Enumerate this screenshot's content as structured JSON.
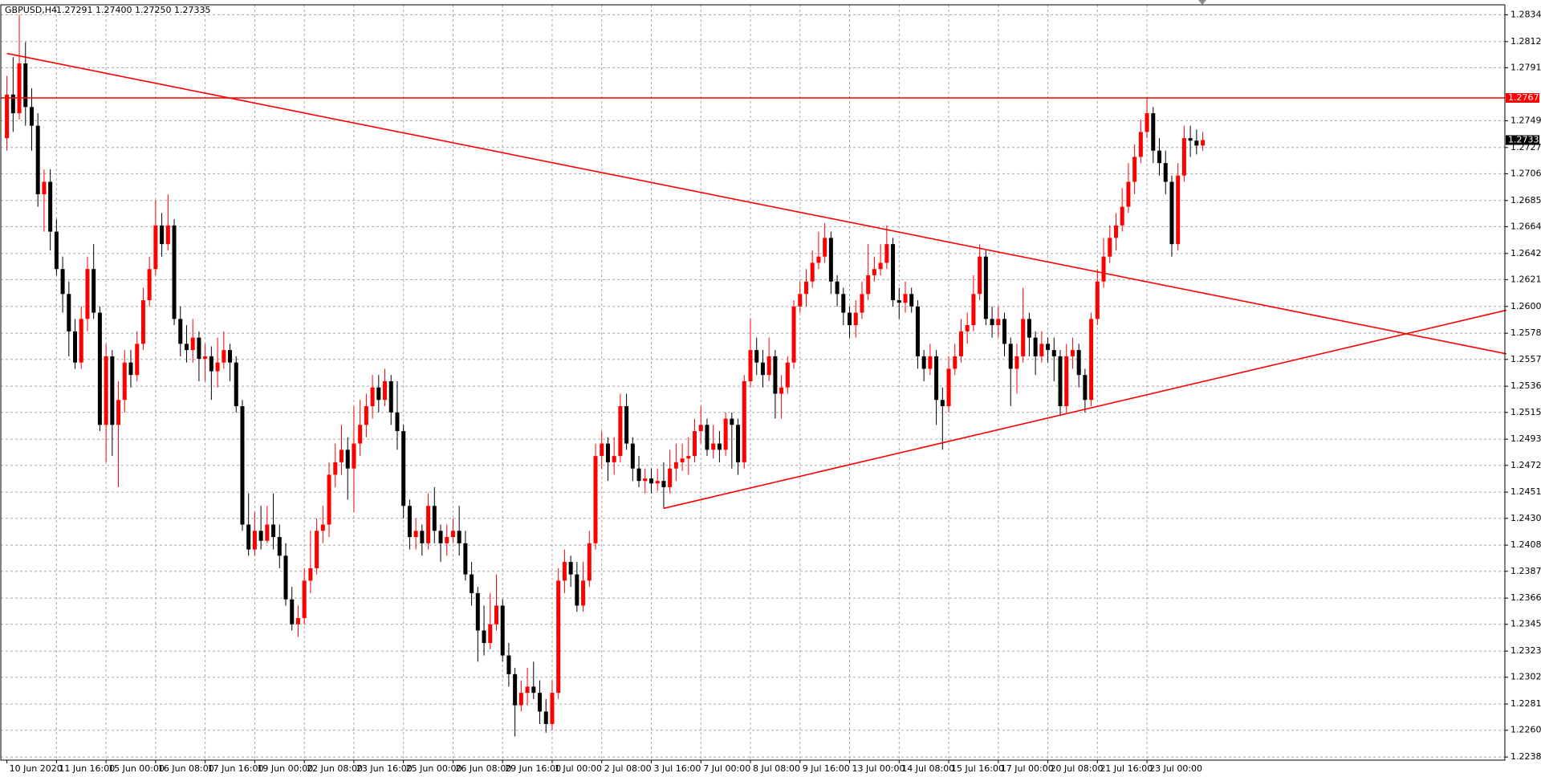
{
  "chart_data": {
    "type": "candlestick",
    "symbol": "GBPUSD,H4",
    "quote": "1.27291 1.27400 1.27250 1.27335",
    "categories": [
      "10 Jun 2020",
      null,
      null,
      null,
      null,
      null,
      null,
      null,
      "11 Jun 16:00",
      null,
      null,
      null,
      null,
      null,
      null,
      null,
      "15 Jun 00:00",
      null,
      null,
      null,
      null,
      null,
      null,
      null,
      "16 Jun 08:00",
      null,
      null,
      null,
      null,
      null,
      null,
      null,
      "17 Jun 16:00",
      null,
      null,
      null,
      null,
      null,
      null,
      null,
      "19 Jun 00:00",
      null,
      null,
      null,
      null,
      null,
      null,
      null,
      "22 Jun 08:00",
      null,
      null,
      null,
      null,
      null,
      null,
      null,
      "23 Jun 16:00",
      null,
      null,
      null,
      null,
      null,
      null,
      null,
      "25 Jun 00:00",
      null,
      null,
      null,
      null,
      null,
      null,
      null,
      "26 Jun 08:00",
      null,
      null,
      null,
      null,
      null,
      null,
      null,
      "29 Jun 16:00",
      null,
      null,
      null,
      null,
      null,
      null,
      null,
      "1 Jul 00:00",
      null,
      null,
      null,
      null,
      null,
      null,
      null,
      "2 Jul 08:00",
      null,
      null,
      null,
      null,
      null,
      null,
      null,
      "3 Jul 16:00",
      null,
      null,
      null,
      null,
      null,
      null,
      null,
      "7 Jul 00:00",
      null,
      null,
      null,
      null,
      null,
      null,
      null,
      "8 Jul 08:00",
      null,
      null,
      null,
      null,
      null,
      null,
      null,
      "9 Jul 16:00",
      null,
      null,
      null,
      null,
      null,
      null,
      null,
      "13 Jul 00:00",
      null,
      null,
      null,
      null,
      null,
      null,
      null,
      "14 Jul 08:00",
      null,
      null,
      null,
      null,
      null,
      null,
      null,
      "15 Jul 16:00",
      null,
      null,
      null,
      null,
      null,
      null,
      null,
      "17 Jul 00:00",
      null,
      null,
      null,
      null,
      null,
      null,
      null,
      "20 Jul 08:00",
      null,
      null,
      null,
      null,
      null,
      null,
      null,
      "21 Jul 16:00",
      null,
      null,
      null,
      null,
      null,
      null,
      null,
      "23 Jul 00:00",
      null,
      null,
      null,
      null,
      null,
      null,
      null,
      null,
      null
    ],
    "open": [
      1.2735,
      1.277,
      1.2755,
      1.2795,
      1.276,
      1.2745,
      1.269,
      1.27,
      1.266,
      1.263,
      1.261,
      1.258,
      1.2555,
      1.259,
      1.263,
      1.2595,
      1.2505,
      1.256,
      1.2505,
      1.2525,
      1.2555,
      1.2545,
      1.257,
      1.2605,
      1.263,
      1.2665,
      1.265,
      1.2665,
      1.259,
      1.257,
      1.2565,
      1.2575,
      1.2558,
      1.256,
      1.2548,
      1.2555,
      1.2565,
      1.2555,
      1.252,
      1.2425,
      1.2405,
      1.242,
      1.2412,
      1.2425,
      1.2415,
      1.24,
      1.2365,
      1.2345,
      1.235,
      1.238,
      1.239,
      1.242,
      1.2425,
      1.2465,
      1.2475,
      1.2485,
      1.247,
      1.249,
      1.2505,
      1.252,
      1.2535,
      1.2525,
      1.254,
      1.2515,
      1.25,
      1.244,
      1.2415,
      1.242,
      1.241,
      1.244,
      1.242,
      1.241,
      1.2415,
      1.242,
      1.241,
      1.2385,
      1.237,
      1.234,
      1.233,
      1.2345,
      1.236,
      1.232,
      1.2305,
      1.228,
      1.229,
      1.2295,
      1.229,
      1.2275,
      1.2265,
      1.229,
      1.238,
      1.2395,
      1.2385,
      1.236,
      1.238,
      1.241,
      1.248,
      1.249,
      1.2475,
      1.248,
      1.252,
      1.249,
      1.247,
      1.246,
      1.2462,
      1.2458,
      1.246,
      1.2455,
      1.247,
      1.2475,
      1.2478,
      1.248,
      1.25,
      1.2505,
      1.2485,
      1.249,
      1.2485,
      1.251,
      1.2505,
      1.2475,
      1.254,
      1.2565,
      1.2555,
      1.2545,
      1.256,
      1.253,
      1.2535,
      1.2555,
      1.26,
      1.261,
      1.262,
      1.2635,
      1.264,
      1.2655,
      1.262,
      1.261,
      1.2595,
      1.2585,
      1.2595,
      1.261,
      1.2625,
      1.263,
      1.2635,
      1.265,
      1.2605,
      1.2603,
      1.261,
      1.26,
      1.256,
      1.255,
      1.256,
      1.2525,
      1.252,
      1.255,
      1.256,
      1.258,
      1.2585,
      1.261,
      1.264,
      1.259,
      1.2585,
      1.259,
      1.257,
      1.255,
      1.256,
      1.259,
      1.2575,
      1.256,
      1.257,
      1.2565,
      1.256,
      1.252,
      1.256,
      1.2565,
      1.2545,
      1.2525,
      1.259,
      1.262,
      1.264,
      1.2655,
      1.2665,
      1.268,
      1.27,
      1.272,
      1.274,
      1.2755,
      1.2725,
      1.2715,
      1.27,
      1.265,
      1.2705,
      1.2735,
      1.2733,
      1.27291
    ],
    "high": [
      1.2785,
      1.28,
      1.2834,
      1.2812,
      1.2775,
      1.2755,
      1.271,
      1.271,
      1.267,
      1.264,
      1.262,
      1.259,
      1.26,
      1.264,
      1.265,
      1.26,
      1.257,
      1.2565,
      1.254,
      1.2565,
      1.2565,
      1.258,
      1.2615,
      1.264,
      1.2685,
      1.2675,
      1.269,
      1.267,
      1.26,
      1.2585,
      1.259,
      1.258,
      1.257,
      1.2568,
      1.2575,
      1.258,
      1.257,
      1.256,
      1.2525,
      1.245,
      1.2435,
      1.244,
      1.244,
      1.245,
      1.2425,
      1.241,
      1.2375,
      1.236,
      1.239,
      1.242,
      1.243,
      1.244,
      1.2475,
      1.249,
      1.2505,
      1.2495,
      1.252,
      1.2525,
      1.253,
      1.2545,
      1.2545,
      1.255,
      1.2545,
      1.254,
      1.2505,
      1.2445,
      1.243,
      1.2425,
      1.245,
      1.2455,
      1.2425,
      1.2425,
      1.243,
      1.244,
      1.242,
      1.2395,
      1.2375,
      1.236,
      1.237,
      1.2385,
      1.2365,
      1.233,
      1.231,
      1.23,
      1.231,
      1.2315,
      1.23,
      1.2285,
      1.23,
      1.239,
      1.2405,
      1.24,
      1.2395,
      1.2395,
      1.242,
      1.249,
      1.25,
      1.2495,
      1.2495,
      1.253,
      1.253,
      1.2495,
      1.248,
      1.247,
      1.247,
      1.247,
      1.2475,
      1.2485,
      1.249,
      1.249,
      1.2495,
      1.251,
      1.252,
      1.251,
      1.2505,
      1.25,
      1.2515,
      1.2515,
      1.251,
      1.2545,
      1.259,
      1.2575,
      1.2565,
      1.2575,
      1.2565,
      1.2545,
      1.256,
      1.2605,
      1.262,
      1.263,
      1.2645,
      1.266,
      1.2667,
      1.266,
      1.2625,
      1.2615,
      1.26,
      1.2605,
      1.262,
      1.265,
      1.264,
      1.265,
      1.2665,
      1.2655,
      1.2615,
      1.262,
      1.2615,
      1.2605,
      1.2565,
      1.257,
      1.2565,
      1.2535,
      1.256,
      1.257,
      1.259,
      1.2595,
      1.2625,
      1.265,
      1.2645,
      1.26,
      1.26,
      1.2595,
      1.2575,
      1.257,
      1.2615,
      1.2595,
      1.258,
      1.258,
      1.2575,
      1.2575,
      1.2565,
      1.257,
      1.2575,
      1.257,
      1.255,
      1.2595,
      1.263,
      1.2655,
      1.2665,
      1.2675,
      1.2695,
      1.2715,
      1.273,
      1.275,
      1.2767,
      1.276,
      1.2735,
      1.2725,
      1.2705,
      1.2715,
      1.2745,
      1.2745,
      1.2742,
      1.274
    ],
    "low": [
      1.2725,
      1.274,
      1.275,
      1.2745,
      1.2725,
      1.268,
      1.266,
      1.2645,
      1.2625,
      1.2595,
      1.256,
      1.255,
      1.255,
      1.258,
      1.259,
      1.25,
      1.2475,
      1.248,
      1.2455,
      1.2515,
      1.2535,
      1.254,
      1.2565,
      1.26,
      1.2625,
      1.264,
      1.2645,
      1.2585,
      1.256,
      1.2555,
      1.2555,
      1.254,
      1.254,
      1.2525,
      1.2535,
      1.255,
      1.254,
      1.2515,
      1.242,
      1.24,
      1.24,
      1.2405,
      1.241,
      1.2405,
      1.239,
      1.236,
      1.234,
      1.2335,
      1.2345,
      1.237,
      1.2385,
      1.241,
      1.2415,
      1.2455,
      1.2465,
      1.2445,
      1.2435,
      1.248,
      1.2495,
      1.251,
      1.2515,
      1.252,
      1.2505,
      1.2485,
      1.243,
      1.2405,
      1.2405,
      1.24,
      1.2405,
      1.241,
      1.2395,
      1.24,
      1.241,
      1.24,
      1.238,
      1.236,
      1.2315,
      1.232,
      1.2325,
      1.234,
      1.2315,
      1.2295,
      1.2255,
      1.2275,
      1.228,
      1.2285,
      1.2265,
      1.2258,
      1.226,
      1.2285,
      1.237,
      1.2375,
      1.2355,
      1.2355,
      1.2375,
      1.2405,
      1.247,
      1.246,
      1.2465,
      1.2475,
      1.2485,
      1.246,
      1.2455,
      1.245,
      1.245,
      1.2452,
      1.2438,
      1.245,
      1.246,
      1.2468,
      1.2465,
      1.2475,
      1.249,
      1.248,
      1.2478,
      1.2475,
      1.248,
      1.247,
      1.2465,
      1.247,
      1.2535,
      1.2545,
      1.2535,
      1.254,
      1.251,
      1.251,
      1.253,
      1.255,
      1.2595,
      1.26,
      1.2615,
      1.263,
      1.2635,
      1.261,
      1.26,
      1.2585,
      1.2575,
      1.2575,
      1.259,
      1.2605,
      1.262,
      1.2625,
      1.263,
      1.26,
      1.259,
      1.2595,
      1.2595,
      1.255,
      1.254,
      1.2545,
      1.2505,
      1.2485,
      1.2515,
      1.2545,
      1.2555,
      1.257,
      1.258,
      1.2605,
      1.2585,
      1.2575,
      1.2575,
      1.256,
      1.252,
      1.253,
      1.2555,
      1.256,
      1.2545,
      1.2555,
      1.2555,
      1.254,
      1.2512,
      1.2515,
      1.255,
      1.2535,
      1.2515,
      1.252,
      1.2585,
      1.2615,
      1.2635,
      1.2645,
      1.266,
      1.2675,
      1.269,
      1.2715,
      1.2735,
      1.2715,
      1.2705,
      1.269,
      1.264,
      1.2645,
      1.27,
      1.272,
      1.2722,
      1.2725
    ],
    "close": [
      1.277,
      1.2755,
      1.2795,
      1.276,
      1.2745,
      1.269,
      1.27,
      1.266,
      1.263,
      1.261,
      1.258,
      1.2555,
      1.259,
      1.263,
      1.2595,
      1.2505,
      1.256,
      1.2505,
      1.2525,
      1.2555,
      1.2545,
      1.257,
      1.2605,
      1.263,
      1.2665,
      1.265,
      1.2665,
      1.259,
      1.257,
      1.2565,
      1.2575,
      1.2558,
      1.256,
      1.2548,
      1.2555,
      1.2565,
      1.2555,
      1.252,
      1.2425,
      1.2405,
      1.242,
      1.2412,
      1.2425,
      1.2415,
      1.24,
      1.2365,
      1.2345,
      1.235,
      1.238,
      1.239,
      1.242,
      1.2425,
      1.2465,
      1.2475,
      1.2485,
      1.247,
      1.249,
      1.2505,
      1.252,
      1.2535,
      1.2525,
      1.254,
      1.2515,
      1.25,
      1.244,
      1.2415,
      1.242,
      1.241,
      1.244,
      1.242,
      1.241,
      1.2415,
      1.242,
      1.241,
      1.2385,
      1.237,
      1.234,
      1.233,
      1.2345,
      1.236,
      1.232,
      1.2305,
      1.228,
      1.229,
      1.2295,
      1.229,
      1.2275,
      1.2265,
      1.229,
      1.238,
      1.2395,
      1.2385,
      1.236,
      1.238,
      1.241,
      1.248,
      1.249,
      1.2475,
      1.248,
      1.252,
      1.249,
      1.247,
      1.246,
      1.2462,
      1.2458,
      1.246,
      1.2455,
      1.247,
      1.2475,
      1.2478,
      1.248,
      1.25,
      1.2505,
      1.2485,
      1.249,
      1.2485,
      1.251,
      1.2505,
      1.2475,
      1.254,
      1.2565,
      1.2555,
      1.2545,
      1.256,
      1.253,
      1.2535,
      1.2555,
      1.26,
      1.261,
      1.262,
      1.2635,
      1.264,
      1.2655,
      1.262,
      1.261,
      1.2595,
      1.2585,
      1.2595,
      1.261,
      1.2625,
      1.263,
      1.2635,
      1.265,
      1.2605,
      1.2603,
      1.261,
      1.26,
      1.256,
      1.255,
      1.256,
      1.2525,
      1.252,
      1.255,
      1.256,
      1.258,
      1.2585,
      1.261,
      1.264,
      1.259,
      1.2585,
      1.259,
      1.257,
      1.255,
      1.256,
      1.259,
      1.2575,
      1.256,
      1.257,
      1.2565,
      1.256,
      1.252,
      1.256,
      1.2565,
      1.2545,
      1.2525,
      1.259,
      1.262,
      1.264,
      1.2655,
      1.2665,
      1.268,
      1.27,
      1.272,
      1.274,
      1.2755,
      1.2725,
      1.2715,
      1.27,
      1.265,
      1.2705,
      1.2735,
      1.2733,
      1.27291,
      1.27335
    ],
    "up_color": "#ff0000",
    "down_color": "#000000",
    "ylim": [
      1.2236,
      1.2842
    ],
    "yticks": [
      {
        "value": 1.2834,
        "label": "1.28340"
      },
      1.28125,
      1.27915,
      {
        "value": 1.2749,
        "label": "1.27490"
      },
      1.27275,
      1.27065,
      {
        "value": 1.2685,
        "label": "1.26850"
      },
      {
        "value": 1.2664,
        "label": "1.26640"
      },
      1.26425,
      1.26215,
      {
        "value": 1.26,
        "label": "1.26000"
      },
      1.25785,
      1.25575,
      {
        "value": 1.2536,
        "label": "1.25360"
      },
      {
        "value": 1.2515,
        "label": "1.25150"
      },
      1.24935,
      1.24725,
      {
        "value": 1.2451,
        "label": "1.24510"
      },
      {
        "value": 1.243,
        "label": "1.24300"
      },
      1.24085,
      1.23875,
      {
        "value": 1.2366,
        "label": "1.23660"
      },
      {
        "value": 1.2345,
        "label": "1.23450"
      },
      1.23235,
      1.23025,
      {
        "value": 1.2281,
        "label": "1.22810"
      },
      {
        "value": 1.226,
        "label": "1.22600"
      },
      1.22385
    ],
    "grid": true,
    "hline": {
      "value": 1.27673,
      "color": "#ff0000"
    },
    "last_price": 1.27335,
    "trendlines": [
      {
        "x": [
          0,
          242
        ],
        "y": [
          1.2803,
          1.2562
        ],
        "color": "#ff0000"
      },
      {
        "x": [
          106,
          242
        ],
        "y": [
          1.2438,
          1.2597
        ],
        "color": "#ff0000"
      }
    ]
  }
}
